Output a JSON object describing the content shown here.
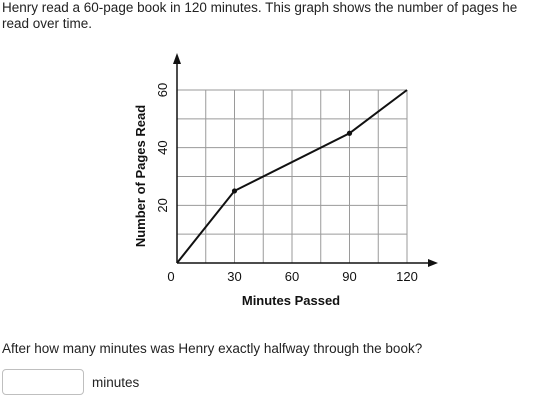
{
  "question": {
    "intro": "Henry read a 60-page book in 120 minutes. This graph shows the number of pages he read over time.",
    "prompt": "After how many minutes was Henry exactly halfway through the book?",
    "answer_value": "",
    "answer_placeholder": "",
    "unit_label": "minutes"
  },
  "chart_data": {
    "type": "line",
    "title": "",
    "xlabel": "Minutes Passed",
    "ylabel": "Number of Pages Read",
    "xlim": [
      0,
      120
    ],
    "ylim": [
      0,
      60
    ],
    "x_ticks": [
      0,
      30,
      60,
      90,
      120
    ],
    "y_ticks": [
      20,
      40,
      60
    ],
    "x_grid_step": 15,
    "y_grid_step": 10,
    "grid": true,
    "series": [
      {
        "x": [
          0,
          30,
          90,
          120
        ],
        "y": [
          0,
          25,
          45,
          60
        ],
        "marked_points": [
          [
            30,
            25
          ],
          [
            90,
            45
          ]
        ]
      }
    ]
  }
}
